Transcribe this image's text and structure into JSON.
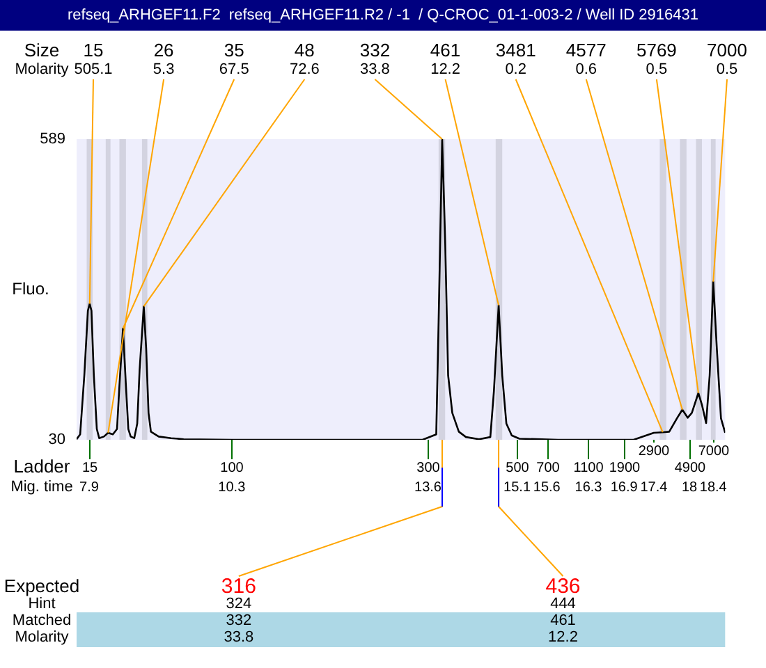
{
  "chart_data": {
    "type": "line",
    "title": "refseq_ARHGEF11.F2  refseq_ARHGEF11.R2 / -1  / Q-CROC_01-1-003-2 / Well ID 2916431",
    "ylabel": "Fluo.",
    "x": [
      7.69,
      7.75,
      7.82,
      7.88,
      7.91,
      7.94,
      7.98,
      8.03,
      8.07,
      8.15,
      8.22,
      8.3,
      8.37,
      8.41,
      8.47,
      8.52,
      8.56,
      8.6,
      8.66,
      8.71,
      8.75,
      8.82,
      8.86,
      8.9,
      8.94,
      9.07,
      9.28,
      9.49,
      10.3,
      13.1,
      13.42,
      13.51,
      13.74,
      13.78,
      13.84,
      13.89,
      13.94,
      14.01,
      14.12,
      14.24,
      14.46,
      14.65,
      14.71,
      14.79,
      14.85,
      14.92,
      15.01,
      15.14,
      15.79,
      17.06,
      17.4,
      17.55,
      17.66,
      17.79,
      17.88,
      17.97,
      18.04,
      18.15,
      18.21,
      18.28,
      18.34,
      18.4,
      18.46,
      18.53,
      18.6
    ],
    "series": [
      {
        "color": "#000000",
        "values": [
          31,
          40,
          150,
          270,
          283,
          270,
          150,
          50,
          33,
          36,
          43,
          40,
          50,
          130,
          237,
          130,
          50,
          36,
          33,
          60,
          160,
          278,
          200,
          80,
          45,
          36,
          33,
          31,
          30,
          30,
          30,
          30,
          40,
          250,
          589,
          400,
          150,
          80,
          45,
          35,
          31,
          35,
          120,
          280,
          150,
          60,
          38,
          32,
          30,
          30,
          43,
          44,
          45,
          70,
          86,
          71,
          80,
          117,
          95,
          61,
          150,
          324,
          200,
          70,
          43
        ]
      }
    ],
    "xlim": [
      7.69,
      18.6
    ],
    "xticks": [
      7.9,
      10.3,
      13.6,
      15.1,
      15.6,
      16.3,
      16.9,
      17.4,
      18,
      18.4
    ],
    "ylim": [
      30,
      589
    ],
    "yticks": [
      30,
      589
    ],
    "grid": false,
    "legend": false,
    "marker": "none",
    "bands": [
      {
        "axis": "x",
        "from": 7.86,
        "to": 7.96,
        "label": null,
        "color": "#d3d3e0"
      },
      {
        "axis": "x",
        "from": 8.18,
        "to": 8.26,
        "label": null,
        "color": "#d3d3e0"
      },
      {
        "axis": "x",
        "from": 8.41,
        "to": 8.52,
        "label": null,
        "color": "#d3d3e0"
      },
      {
        "axis": "x",
        "from": 8.79,
        "to": 8.88,
        "label": null,
        "color": "#d3d3e0"
      },
      {
        "axis": "x",
        "from": 13.78,
        "to": 13.89,
        "label": null,
        "color": "#d3d3e0"
      },
      {
        "axis": "x",
        "from": 14.74,
        "to": 14.85,
        "label": null,
        "color": "#d3d3e0"
      },
      {
        "axis": "x",
        "from": 17.5,
        "to": 17.61,
        "label": null,
        "color": "#d3d3e0"
      },
      {
        "axis": "x",
        "from": 17.84,
        "to": 17.95,
        "label": null,
        "color": "#d3d3e0"
      },
      {
        "axis": "x",
        "from": 18.11,
        "to": 18.21,
        "label": null,
        "color": "#d3d3e0"
      },
      {
        "axis": "x",
        "from": 18.36,
        "to": 18.44,
        "label": null,
        "color": "#d3d3e0"
      }
    ],
    "annotations": [
      "Size\nMolarity",
      "Ladder\nMig. time",
      "Expected\nHint\nMatched\nMolarity",
      "15",
      "100",
      "300",
      "500",
      "700",
      "1100",
      "1900",
      "2900",
      "4900",
      "7000",
      {
        "text": "15\n505.1",
        "x": 7.91,
        "y": 283
      },
      {
        "text": "26\n5.3",
        "x": 8.22,
        "y": 43
      },
      {
        "text": "35\n67.5",
        "x": 8.47,
        "y": 237
      },
      {
        "text": "48\n72.6",
        "x": 8.82,
        "y": 278
      },
      {
        "text": "332\n33.8",
        "x": 13.84,
        "y": 589
      },
      {
        "text": "461\n12.2",
        "x": 14.79,
        "y": 280
      },
      {
        "text": "3481\n0.2",
        "x": 17.55,
        "y": 44
      },
      {
        "text": "4577\n0.6",
        "x": 17.88,
        "y": 86
      },
      {
        "text": "5769\n0.5",
        "x": 18.15,
        "y": 117
      },
      {
        "text": "7000\n0.5",
        "x": 18.4,
        "y": 324
      },
      {
        "text": "316\n324\n332\n33.8",
        "x": 13.84,
        "y": 30
      },
      {
        "text": "436\n444\n461\n12.2",
        "x": 14.79,
        "y": 30
      }
    ]
  }
}
